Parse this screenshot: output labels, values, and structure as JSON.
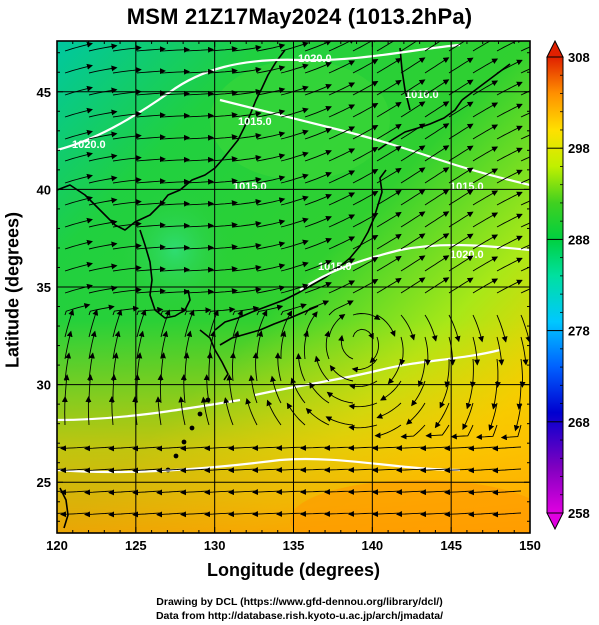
{
  "title": "MSM 21Z17May2024 (1013.2hPa)",
  "x_axis": {
    "label": "Longitude (degrees)",
    "ticks": [
      "120",
      "125",
      "130",
      "135",
      "140",
      "145",
      "150"
    ],
    "range": [
      120,
      150
    ]
  },
  "y_axis": {
    "label": "Latitude  (degrees)",
    "ticks": [
      "25",
      "30",
      "35",
      "40",
      "45"
    ],
    "range": [
      22.4,
      47.6
    ]
  },
  "colorbar": {
    "ticks": [
      "258",
      "268",
      "278",
      "288",
      "298",
      "308"
    ],
    "range": [
      258,
      308
    ],
    "colors": [
      "#e000e0",
      "#8000c0",
      "#0000d0",
      "#0040ff",
      "#00a0ff",
      "#00e0e0",
      "#00e080",
      "#00d030",
      "#40e020",
      "#c0f000",
      "#ffe000",
      "#ffa000",
      "#ff6000",
      "#e02000"
    ]
  },
  "contours": {
    "labels": [
      "1020.0",
      "1015.0",
      "1010.0",
      "1020.0",
      "1015.0",
      "1020.0",
      "1015.0",
      "1015.0"
    ]
  },
  "credits": {
    "line1": "Drawing by DCL (https://www.gfd-dennou.org/library/dcl/)",
    "line2": "Data from http://database.rish.kyoto-u.ac.jp/arch/jmadata/"
  },
  "colors": {
    "grid": "#000000",
    "contour": "#ffffff",
    "land_outline": "#000000",
    "streamline": "#000000"
  }
}
